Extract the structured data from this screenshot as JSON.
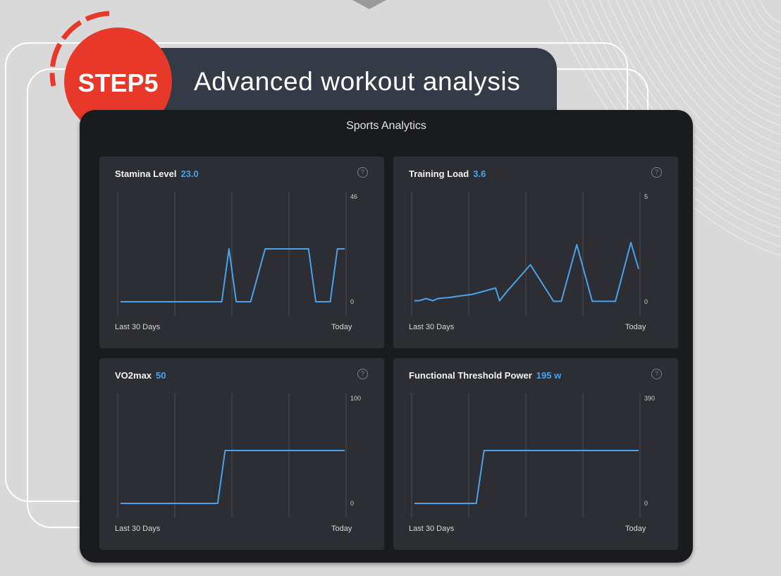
{
  "header": {
    "step": "STEP5",
    "title": "Advanced workout analysis"
  },
  "app": {
    "title": "Sports Analytics"
  },
  "colors": {
    "accent": "#4aa3ea",
    "step_badge": "#e8382a",
    "header_bar": "#343a46",
    "card_bg": "#2d2e33"
  },
  "help_icon": "question-circle-icon",
  "chart_data": [
    {
      "type": "line",
      "title": "Stamina Level",
      "value": "23.0",
      "ylim": [
        0,
        46
      ],
      "tick_labels": {
        "y_max": "46",
        "y_min": "0"
      },
      "x_labels": {
        "start": "Last 30 Days",
        "end": "Today"
      },
      "grid": true,
      "x": [
        0,
        14,
        15,
        16,
        18,
        20,
        26,
        27,
        29,
        30,
        31
      ],
      "y": [
        0,
        0,
        23,
        0,
        0,
        23,
        23,
        0,
        0,
        23,
        23
      ]
    },
    {
      "type": "line",
      "title": "Training Load",
      "value": "3.6",
      "ylim": [
        0,
        5
      ],
      "tick_labels": {
        "y_max": "5",
        "y_min": "0"
      },
      "x_labels": {
        "start": "Last 30 Days",
        "end": "Today"
      },
      "grid": true,
      "x": [
        0,
        0.6,
        1.5,
        2.4,
        3,
        4.5,
        6,
        7.5,
        9,
        10.5,
        11,
        12,
        15,
        18,
        19,
        21,
        23,
        26,
        28,
        29
      ],
      "y": [
        0.05,
        0.05,
        0.15,
        0.05,
        0.15,
        0.2,
        0.28,
        0.35,
        0.5,
        0.65,
        0.05,
        0.5,
        1.75,
        0.02,
        0.02,
        2.7,
        0.02,
        0.02,
        2.8,
        1.55
      ]
    },
    {
      "type": "line",
      "title": "VO2max",
      "value": "50",
      "ylim": [
        0,
        100
      ],
      "tick_labels": {
        "y_max": "100",
        "y_min": "0"
      },
      "x_labels": {
        "start": "Last 30 Days",
        "end": "Today"
      },
      "grid": true,
      "x": [
        0,
        13,
        14,
        30
      ],
      "y": [
        0,
        0,
        50,
        50
      ]
    },
    {
      "type": "line",
      "title": "Functional Threshold Power",
      "value": "195 w",
      "ylim": [
        0,
        390
      ],
      "tick_labels": {
        "y_max": "390",
        "y_min": "0"
      },
      "x_labels": {
        "start": "Last 30 Days",
        "end": "Today"
      },
      "grid": true,
      "x": [
        0,
        8,
        9,
        29
      ],
      "y": [
        0,
        0,
        195,
        195
      ]
    }
  ]
}
